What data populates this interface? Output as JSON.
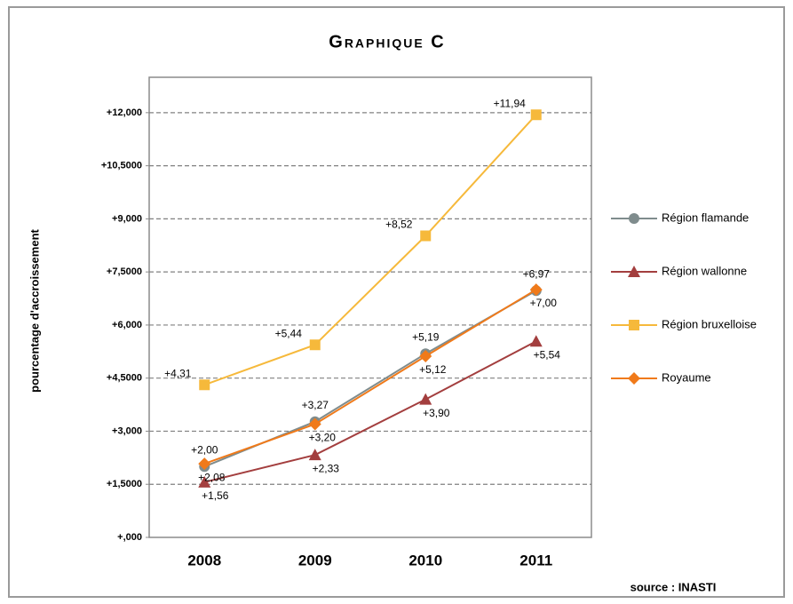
{
  "chart_data": {
    "type": "line",
    "title": "Graphique C",
    "y_label": "pourcentage d'accroissement",
    "source": "source : INASTI",
    "categories": [
      "2008",
      "2009",
      "2010",
      "2011"
    ],
    "ylim": [
      0,
      13
    ],
    "yticks": [
      {
        "value": 0,
        "label": "+,000"
      },
      {
        "value": 1.5,
        "label": "+1,5000"
      },
      {
        "value": 3,
        "label": "+3,000"
      },
      {
        "value": 4.5,
        "label": "+4,5000"
      },
      {
        "value": 6,
        "label": "+6,000"
      },
      {
        "value": 7.5,
        "label": "+7,5000"
      },
      {
        "value": 9,
        "label": "+9,000"
      },
      {
        "value": 10.5,
        "label": "+10,5000"
      },
      {
        "value": 12,
        "label": "+12,000"
      }
    ],
    "grid": true,
    "legend": "right",
    "series": [
      {
        "name": "Région flamande",
        "color": "#7f8c8d",
        "marker": "circle",
        "values": [
          2.0,
          3.27,
          5.19,
          6.97
        ],
        "value_labels": [
          "+2,00",
          "+3,27",
          "+5,19",
          "+6,97"
        ]
      },
      {
        "name": "Région wallonne",
        "color": "#a33e3e",
        "marker": "triangle",
        "values": [
          1.56,
          2.33,
          3.9,
          5.54
        ],
        "value_labels": [
          "+1,56",
          "+2,33",
          "+3,90",
          "+5,54"
        ]
      },
      {
        "name": "Région bruxelloise",
        "color": "#f6b93b",
        "marker": "square",
        "values": [
          4.31,
          5.44,
          8.52,
          11.94
        ],
        "value_labels": [
          "+4,31",
          "+5,44",
          "+8,52",
          "+11,94"
        ]
      },
      {
        "name": "Royaume",
        "color": "#f07a1a",
        "marker": "diamond",
        "values": [
          2.08,
          3.2,
          5.12,
          7.0
        ],
        "value_labels": [
          "+2,08",
          "+3,20",
          "+5,12",
          "+7,00"
        ]
      }
    ]
  }
}
